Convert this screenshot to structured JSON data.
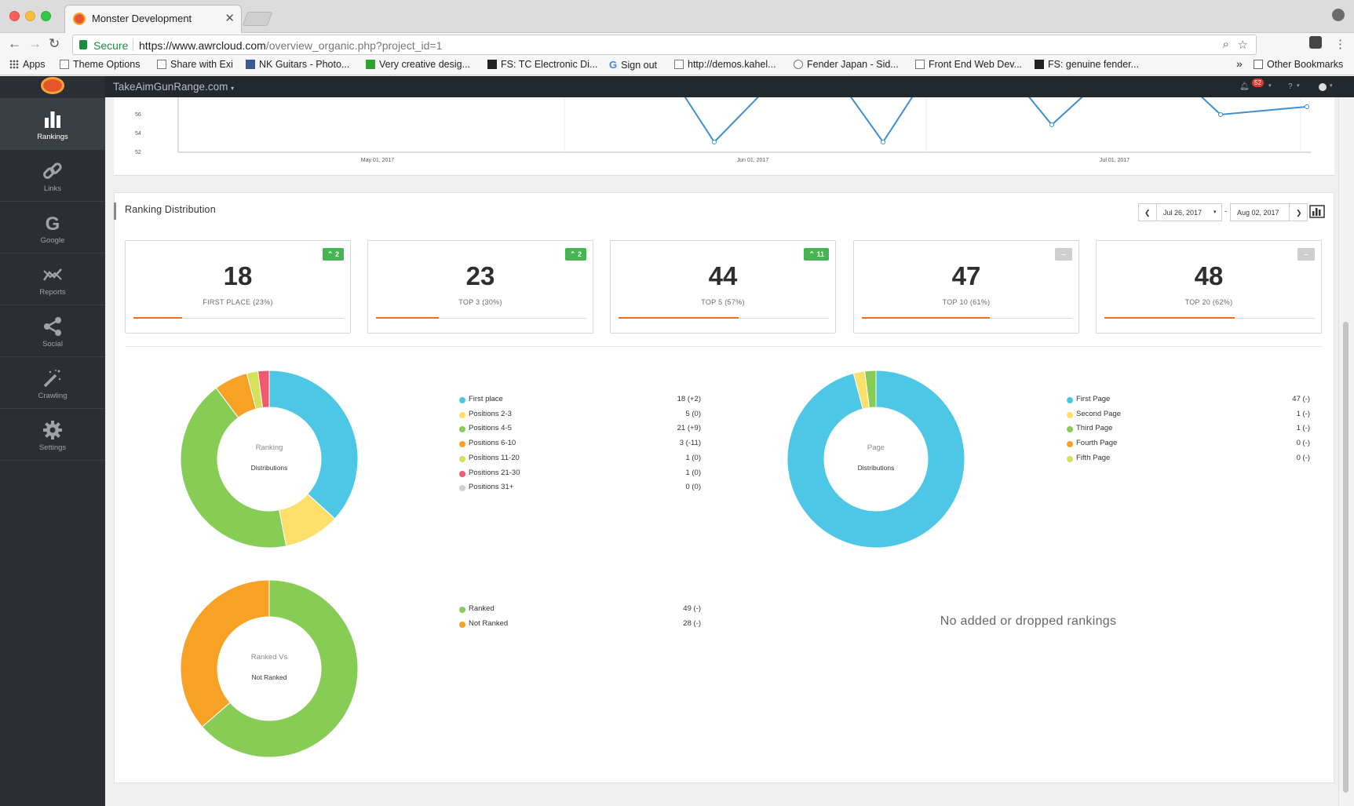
{
  "browser": {
    "tab_title": "Monster Development",
    "secure_label": "Secure",
    "url_prefix": "https://www.awrcloud.com",
    "url_rest": "/overview_organic.php?project_id=1",
    "bookmarks": [
      "Apps",
      "Theme Options",
      "Share with Exi",
      "NK Guitars - Photo...",
      "Very creative desig...",
      "FS: TC Electronic Di...",
      "Sign out",
      "http://demos.kahel...",
      "Fender Japan - Sid...",
      "Front End Web Dev...",
      "FS: genuine fender..."
    ],
    "bookmarks_more": "»",
    "other_bookmarks": "Other Bookmarks"
  },
  "app": {
    "project_name": "TakeAimGunRange.com",
    "notifications_count": "52",
    "sidebar": [
      {
        "label": "Rankings",
        "icon": "bar-chart-icon",
        "active": true
      },
      {
        "label": "Links",
        "icon": "link-icon",
        "active": false
      },
      {
        "label": "Google",
        "icon": "google-icon",
        "active": false
      },
      {
        "label": "Reports",
        "icon": "reports-icon",
        "active": false
      },
      {
        "label": "Social",
        "icon": "share-icon",
        "active": false
      },
      {
        "label": "Crawling",
        "icon": "magic-wand-icon",
        "active": false
      },
      {
        "label": "Settings",
        "icon": "gear-icon",
        "active": false
      }
    ]
  },
  "top_chart": {
    "y_ticks": [
      "56",
      "54",
      "52"
    ],
    "x_ticks": [
      "May 01, 2017",
      "Jun 01, 2017",
      "Jul 01, 2017"
    ]
  },
  "section": {
    "title": "Ranking Distribution",
    "date_from": "Jul 26, 2017",
    "date_to": "Aug 02, 2017",
    "date_sep": "-"
  },
  "stats": [
    {
      "value": "18",
      "label": "FIRST PLACE (23%)",
      "change": "2",
      "percent": 23
    },
    {
      "value": "23",
      "label": "TOP 3 (30%)",
      "change": "2",
      "percent": 30
    },
    {
      "value": "44",
      "label": "TOP 5 (57%)",
      "change": "11",
      "percent": 57
    },
    {
      "value": "47",
      "label": "TOP 10 (61%)",
      "change": "",
      "percent": 61
    },
    {
      "value": "48",
      "label": "TOP 20 (62%)",
      "change": "",
      "percent": 62
    }
  ],
  "donuts": {
    "ranking": {
      "center_top": "Ranking",
      "center_bottom": "Distributions",
      "legend": [
        {
          "name": "First place",
          "value": "18 (+2)",
          "count": 18,
          "color": "#4ec7e6"
        },
        {
          "name": "Positions 2-3",
          "value": "5 (0)",
          "count": 5,
          "color": "#fde06a"
        },
        {
          "name": "Positions 4-5",
          "value": "21 (+9)",
          "count": 21,
          "color": "#86cc55"
        },
        {
          "name": "Positions 6-10",
          "value": "3 (-11)",
          "count": 3,
          "color": "#f7a125"
        },
        {
          "name": "Positions 11-20",
          "value": "1 (0)",
          "count": 1,
          "color": "#d5e05b"
        },
        {
          "name": "Positions 21-30",
          "value": "1 (0)",
          "count": 1,
          "color": "#ef5a6f"
        },
        {
          "name": "Positions 31+",
          "value": "0 (0)",
          "count": 0,
          "color": "#d0d0d0"
        }
      ]
    },
    "page": {
      "center_top": "Page",
      "center_bottom": "Distributions",
      "legend": [
        {
          "name": "First Page",
          "value": "47 (-)",
          "count": 47,
          "color": "#4ec7e6"
        },
        {
          "name": "Second Page",
          "value": "1 (-)",
          "count": 1,
          "color": "#fde06a"
        },
        {
          "name": "Third Page",
          "value": "1 (-)",
          "count": 1,
          "color": "#86cc55"
        },
        {
          "name": "Fourth Page",
          "value": "0 (-)",
          "count": 0,
          "color": "#f7a125"
        },
        {
          "name": "Fifth Page",
          "value": "0 (-)",
          "count": 0,
          "color": "#d5e05b"
        }
      ]
    },
    "ranked": {
      "center_top": "Ranked Vs",
      "center_bottom": "Not Ranked",
      "legend": [
        {
          "name": "Ranked",
          "value": "49 (-)",
          "count": 49,
          "color": "#86cc55"
        },
        {
          "name": "Not Ranked",
          "value": "28 (-)",
          "count": 28,
          "color": "#f7a125"
        }
      ]
    }
  },
  "empty_message": "No added or dropped rankings"
}
